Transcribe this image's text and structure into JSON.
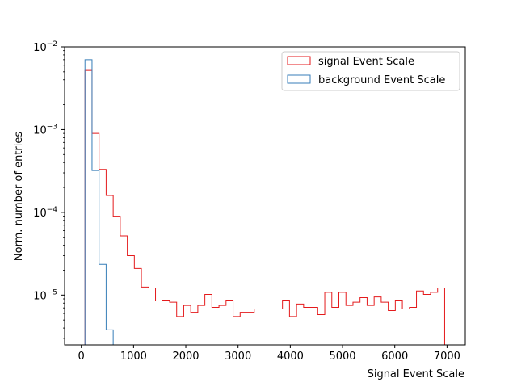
{
  "chart_data": {
    "type": "histogram",
    "xlabel": "Signal Event Scale",
    "ylabel": "Norm. number of entries",
    "xscale": "linear",
    "yscale": "log",
    "xlim": [
      -320,
      7350
    ],
    "ylim": [
      2.5e-06,
      0.01
    ],
    "x_ticks": [
      0,
      1000,
      2000,
      3000,
      4000,
      5000,
      6000,
      7000
    ],
    "x_tick_labels": [
      "0",
      "1000",
      "2000",
      "3000",
      "4000",
      "5000",
      "6000",
      "7000"
    ],
    "y_ticks": [
      1e-05,
      0.0001,
      0.001,
      0.01
    ],
    "y_tick_labels": [
      {
        "base": "10",
        "exp": "−5"
      },
      {
        "base": "10",
        "exp": "−4"
      },
      {
        "base": "10",
        "exp": "−3"
      },
      {
        "base": "10",
        "exp": "−2"
      }
    ],
    "legend_position": "upper right",
    "series": [
      {
        "name": "signal Event Scale",
        "color": "#e41a1c",
        "bin_edges": [
          70,
          205,
          340,
          475,
          610,
          745,
          880,
          1015,
          1150,
          1285,
          1420,
          1555,
          1690,
          1825,
          1960,
          2095,
          2230,
          2365,
          2500,
          2635,
          2770,
          2905,
          3040,
          3175,
          3310,
          3445,
          3580,
          3715,
          3850,
          3985,
          4120,
          4255,
          4390,
          4525,
          4660,
          4795,
          4930,
          5065,
          5200,
          5335,
          5470,
          5605,
          5740,
          5875,
          6010,
          6145,
          6280,
          6415,
          6550,
          6685,
          6820,
          6955
        ],
        "values": [
          0.0052,
          0.0009,
          0.00033,
          0.00016,
          9e-05,
          5.2e-05,
          3e-05,
          2.1e-05,
          1.25e-05,
          1.22e-05,
          8.5e-06,
          8.7e-06,
          8.2e-06,
          5.5e-06,
          7.5e-06,
          6.2e-06,
          7.5e-06,
          1.02e-05,
          7.1e-06,
          7.5e-06,
          8.7e-06,
          5.5e-06,
          6.2e-06,
          6.2e-06,
          6.8e-06,
          6.8e-06,
          6.8e-06,
          6.8e-06,
          8.7e-06,
          5.5e-06,
          7.8e-06,
          7.1e-06,
          7.1e-06,
          5.8e-06,
          1.08e-05,
          7.1e-06,
          1.08e-05,
          7.5e-06,
          8.2e-06,
          9.3e-06,
          7.5e-06,
          9.5e-06,
          8.2e-06,
          6.5e-06,
          8.7e-06,
          6.8e-06,
          7.1e-06,
          1.12e-05,
          1.02e-05,
          1.08e-05,
          1.22e-05
        ]
      },
      {
        "name": "background Event Scale",
        "color": "#377eb8",
        "bin_edges": [
          70,
          205,
          340,
          475,
          610
        ],
        "values": [
          0.007,
          0.00032,
          2.35e-05,
          3.8e-06
        ]
      }
    ]
  }
}
